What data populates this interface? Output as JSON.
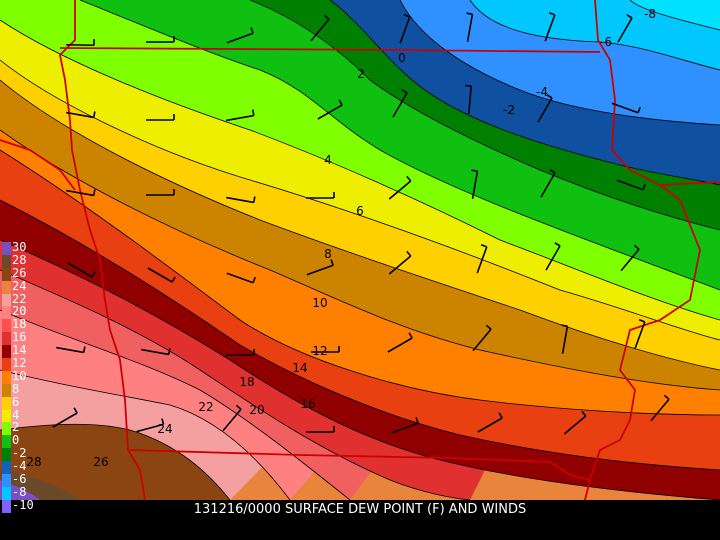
{
  "title": "131216/0000 SURFACE DEW POINT (F) AND WINDS",
  "legend": [
    {
      "label": "30",
      "color": "#7b4fc4"
    },
    {
      "label": "28",
      "color": "#6a4a2a"
    },
    {
      "label": "26",
      "color": "#8b4513"
    },
    {
      "label": "24",
      "color": "#e8843c"
    },
    {
      "label": "22",
      "color": "#f4a0a0"
    },
    {
      "label": "20",
      "color": "#ff8080"
    },
    {
      "label": "18",
      "color": "#ff5050"
    },
    {
      "label": "16",
      "color": "#e03030"
    },
    {
      "label": "14",
      "color": "#900000"
    },
    {
      "label": "12",
      "color": "#e84010"
    },
    {
      "label": "10",
      "color": "#ff8000"
    },
    {
      "label": "8",
      "color": "#cc8400"
    },
    {
      "label": "6",
      "color": "#ffd000"
    },
    {
      "label": "4",
      "color": "#eeee00"
    },
    {
      "label": "2",
      "color": "#80ff00"
    },
    {
      "label": "0",
      "color": "#10c010"
    },
    {
      "label": "-2",
      "color": "#008000"
    },
    {
      "label": "-4",
      "color": "#1060c0"
    },
    {
      "label": "-6",
      "color": "#3090ff"
    },
    {
      "label": "-8",
      "color": "#00c8ff"
    },
    {
      "label": "-10",
      "color": "#8060ff"
    }
  ],
  "contour_labels": [
    "-8",
    "-6",
    "-4",
    "-2",
    "0",
    "2",
    "4",
    "6",
    "8",
    "10",
    "12",
    "14",
    "16",
    "18",
    "20",
    "22",
    "24",
    "26",
    "28"
  ]
}
